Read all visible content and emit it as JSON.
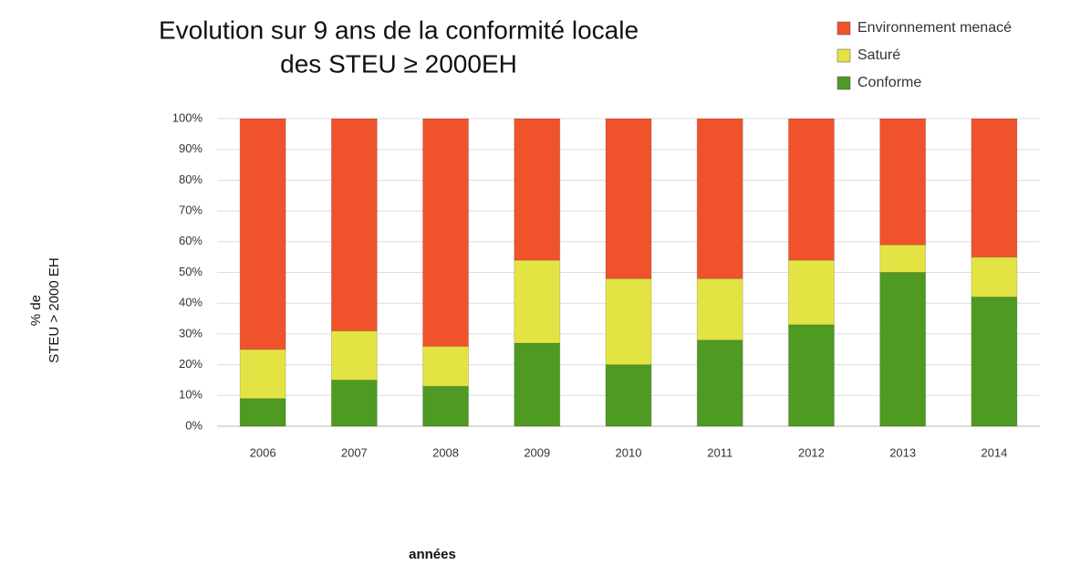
{
  "chart_data": {
    "type": "stacked_bar",
    "title": [
      "Evolution sur 9 ans de la conformité locale",
      "des STEU ≥ 2000EH"
    ],
    "x_label": "années",
    "y_label": [
      "% de",
      "STEU > 2000 EH"
    ],
    "categories": [
      "2006",
      "2007",
      "2008",
      "2009",
      "2010",
      "2011",
      "2012",
      "2013",
      "2014"
    ],
    "series": [
      {
        "name": "Conforme",
        "color": "#4f9a22",
        "values": [
          9,
          15,
          13,
          27,
          20,
          28,
          33,
          50,
          42
        ]
      },
      {
        "name": "Saturé",
        "color": "#e3e443",
        "values": [
          16,
          16,
          13,
          27,
          28,
          20,
          21,
          9,
          13
        ]
      },
      {
        "name": "Environnement menacé",
        "color": "#f0532c",
        "values": [
          75,
          69,
          74,
          46,
          52,
          52,
          46,
          41,
          45
        ]
      }
    ],
    "ylim": [
      0,
      100
    ],
    "yticks": [
      {
        "value": 0,
        "label": "0%"
      },
      {
        "value": 10,
        "label": "10%"
      },
      {
        "value": 20,
        "label": "20%"
      },
      {
        "value": 30,
        "label": "30%"
      },
      {
        "value": 40,
        "label": "40%"
      },
      {
        "value": 50,
        "label": "50%"
      },
      {
        "value": 60,
        "label": "60%"
      },
      {
        "value": 70,
        "label": "70%"
      },
      {
        "value": 80,
        "label": "80%"
      },
      {
        "value": 90,
        "label": "90%"
      },
      {
        "value": 100,
        "label": "100%"
      }
    ],
    "grid": true,
    "legend": "top-right"
  }
}
